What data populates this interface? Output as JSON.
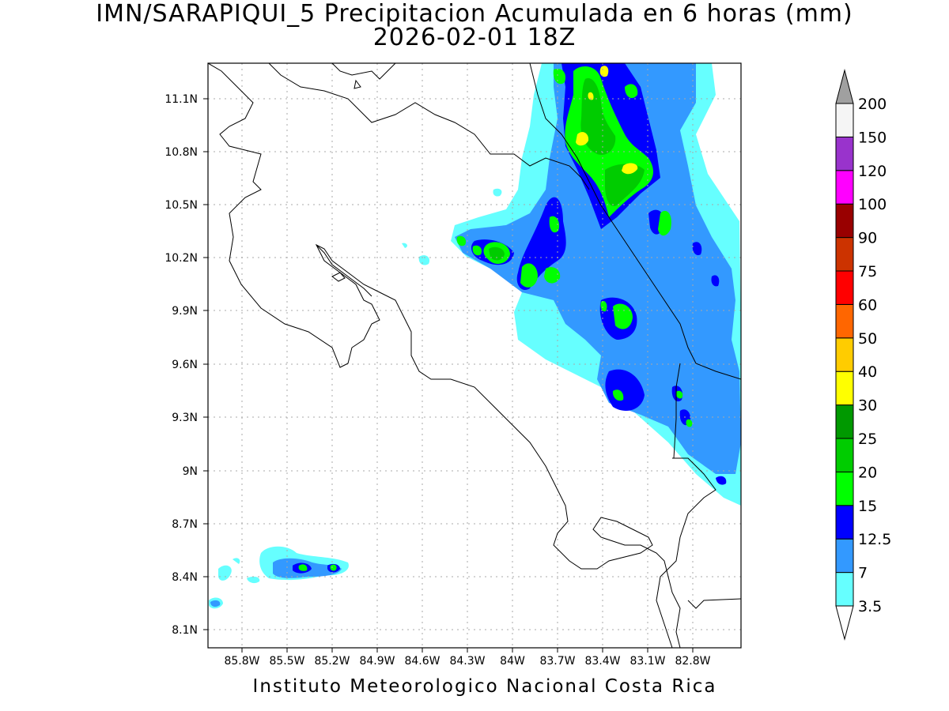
{
  "title": "IMN/SARAPIQUI_5 Precipitacion Acumulada en 6 horas (mm)",
  "subtitle": "2026-02-01 18Z",
  "footer": "Instituto Meteorologico Nacional Costa Rica",
  "map": {
    "lon_range": [
      -86.0,
      -82.6
    ],
    "lat_range": [
      8.0,
      11.3
    ],
    "lon_ticks": [
      "85.8W",
      "85.5W",
      "85.2W",
      "84.9W",
      "84.6W",
      "84.3W",
      "84W",
      "83.7W",
      "83.4W",
      "83.1W",
      "82.8W"
    ],
    "lat_ticks": [
      "11.1N",
      "10.8N",
      "10.5N",
      "10.2N",
      "9.9N",
      "9.6N",
      "9.3N",
      "9N",
      "8.7N",
      "8.4N",
      "8.1N"
    ],
    "grid": true
  },
  "colorbar": {
    "labels": [
      "3.5",
      "7",
      "12.5",
      "15",
      "20",
      "25",
      "30",
      "40",
      "50",
      "60",
      "75",
      "90",
      "100",
      "120",
      "150",
      "200"
    ],
    "colors": [
      "#ffffff",
      "#66ffff",
      "#3399ff",
      "#0000ff",
      "#00ff00",
      "#00cc00",
      "#009900",
      "#ffff00",
      "#ffcc00",
      "#ff6600",
      "#ff0000",
      "#cc3300",
      "#990000",
      "#ff00ff",
      "#9933cc",
      "#f5f5f5"
    ],
    "over_color": "#a0a0a0"
  }
}
